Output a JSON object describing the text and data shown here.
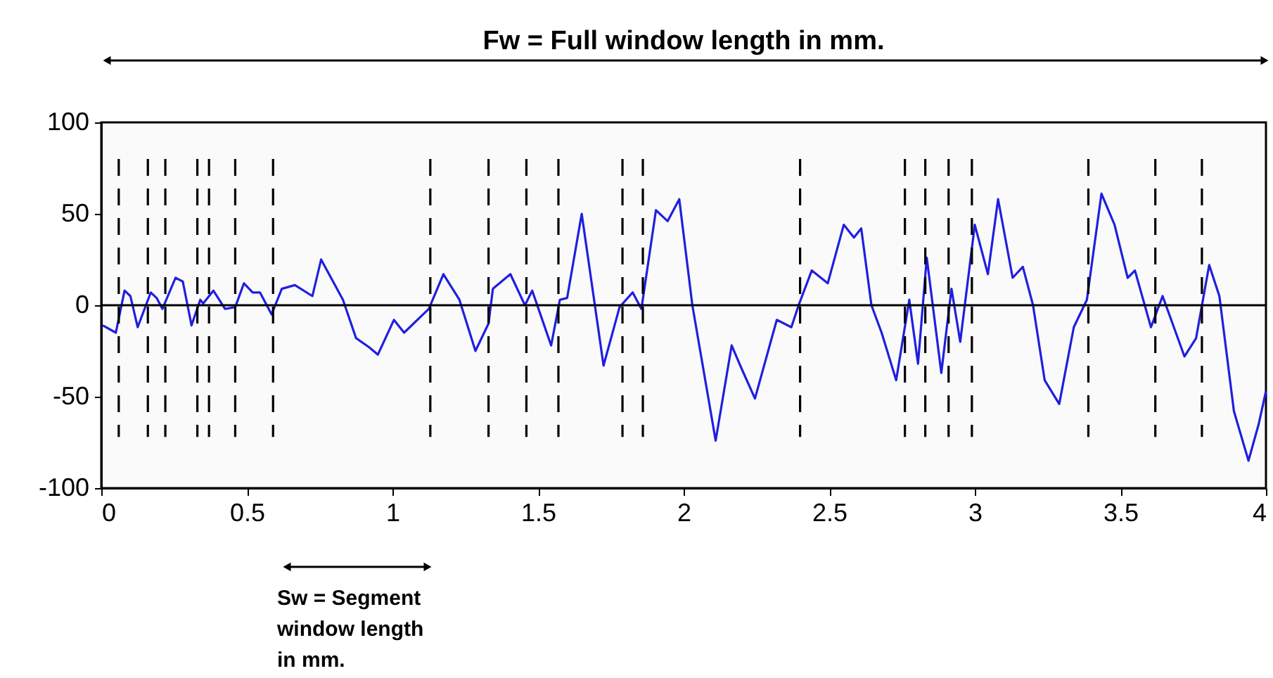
{
  "chart_data": {
    "type": "line",
    "x": [
      0.005,
      0.05,
      0.08,
      0.1,
      0.125,
      0.17,
      0.19,
      0.21,
      0.255,
      0.28,
      0.31,
      0.34,
      0.35,
      0.385,
      0.425,
      0.46,
      0.49,
      0.52,
      0.545,
      0.585,
      0.62,
      0.665,
      0.725,
      0.755,
      0.83,
      0.875,
      0.92,
      0.95,
      1.005,
      1.04,
      1.125,
      1.175,
      1.23,
      1.285,
      1.33,
      1.345,
      1.405,
      1.455,
      1.48,
      1.545,
      1.575,
      1.6,
      1.65,
      1.725,
      1.78,
      1.825,
      1.855,
      1.905,
      1.945,
      1.985,
      2.03,
      2.11,
      2.165,
      2.2,
      2.245,
      2.32,
      2.37,
      2.395,
      2.44,
      2.495,
      2.55,
      2.585,
      2.61,
      2.645,
      2.68,
      2.73,
      2.775,
      2.805,
      2.835,
      2.885,
      2.92,
      2.95,
      3.0,
      3.045,
      3.08,
      3.13,
      3.165,
      3.2,
      3.24,
      3.29,
      3.34,
      3.385,
      3.435,
      3.48,
      3.525,
      3.55,
      3.605,
      3.645,
      3.72,
      3.76,
      3.805,
      3.84,
      3.89,
      3.94,
      3.975,
      4.0
    ],
    "series": [
      {
        "color": "#1f1fe0",
        "values": [
          -11,
          -15,
          8,
          5,
          -12,
          7,
          4,
          -2,
          15,
          13,
          -11,
          3,
          1,
          8,
          -2,
          -1,
          12,
          7,
          7,
          -5,
          9,
          11,
          5,
          25,
          3,
          -18,
          -23,
          -27,
          -8,
          -15,
          -2,
          17,
          3,
          -25,
          -10,
          9,
          17,
          0,
          8,
          -22,
          3,
          4,
          50,
          -33,
          -1,
          7,
          -2,
          52,
          46,
          58,
          0,
          -74,
          -22,
          -35,
          -51,
          -8,
          -12,
          0,
          19,
          12,
          44,
          37,
          42,
          0,
          -15,
          -41,
          3,
          -32,
          26,
          -37,
          9,
          -20,
          44,
          17,
          58,
          15,
          21,
          0,
          -41,
          -54,
          -12,
          3,
          61,
          44,
          15,
          19,
          -12,
          5,
          -28,
          -18,
          22,
          5,
          -58,
          -85,
          -65,
          -47
        ]
      }
    ],
    "xlim": [
      0,
      4
    ],
    "xticks": [
      0,
      0.5,
      1,
      1.5,
      2,
      2.5,
      3,
      3.5,
      4
    ],
    "ylim": [
      -100,
      100
    ],
    "yticks": [
      -100,
      -50,
      0,
      50,
      100
    ],
    "grid": false,
    "ref_lines": [
      {
        "axis": "y",
        "value": 0,
        "color": "#000000",
        "line_style": "solid"
      },
      {
        "axis": "x",
        "value": 0.06,
        "color": "#000000",
        "line_style": "dashed"
      },
      {
        "axis": "x",
        "value": 0.16,
        "color": "#000000",
        "line_style": "dashed"
      },
      {
        "axis": "x",
        "value": 0.22,
        "color": "#000000",
        "line_style": "dashed"
      },
      {
        "axis": "x",
        "value": 0.33,
        "color": "#000000",
        "line_style": "dashed"
      },
      {
        "axis": "x",
        "value": 0.37,
        "color": "#000000",
        "line_style": "dashed"
      },
      {
        "axis": "x",
        "value": 0.46,
        "color": "#000000",
        "line_style": "dashed"
      },
      {
        "axis": "x",
        "value": 0.59,
        "color": "#000000",
        "line_style": "dashed"
      },
      {
        "axis": "x",
        "value": 1.13,
        "color": "#000000",
        "line_style": "dashed"
      },
      {
        "axis": "x",
        "value": 1.33,
        "color": "#000000",
        "line_style": "dashed"
      },
      {
        "axis": "x",
        "value": 1.46,
        "color": "#000000",
        "line_style": "dashed"
      },
      {
        "axis": "x",
        "value": 1.57,
        "color": "#000000",
        "line_style": "dashed"
      },
      {
        "axis": "x",
        "value": 1.79,
        "color": "#000000",
        "line_style": "dashed"
      },
      {
        "axis": "x",
        "value": 1.86,
        "color": "#000000",
        "line_style": "dashed"
      },
      {
        "axis": "x",
        "value": 2.4,
        "color": "#000000",
        "line_style": "dashed"
      },
      {
        "axis": "x",
        "value": 2.76,
        "color": "#000000",
        "line_style": "dashed"
      },
      {
        "axis": "x",
        "value": 2.83,
        "color": "#000000",
        "line_style": "dashed"
      },
      {
        "axis": "x",
        "value": 2.91,
        "color": "#000000",
        "line_style": "dashed"
      },
      {
        "axis": "x",
        "value": 2.99,
        "color": "#000000",
        "line_style": "dashed"
      },
      {
        "axis": "x",
        "value": 3.39,
        "color": "#000000",
        "line_style": "dashed"
      },
      {
        "axis": "x",
        "value": 3.62,
        "color": "#000000",
        "line_style": "dashed"
      },
      {
        "axis": "x",
        "value": 3.78,
        "color": "#000000",
        "line_style": "dashed"
      }
    ],
    "annotations": [
      "Fw = Full window length in mm.",
      "Sw = Segment\nwindow length\nin mm."
    ]
  }
}
